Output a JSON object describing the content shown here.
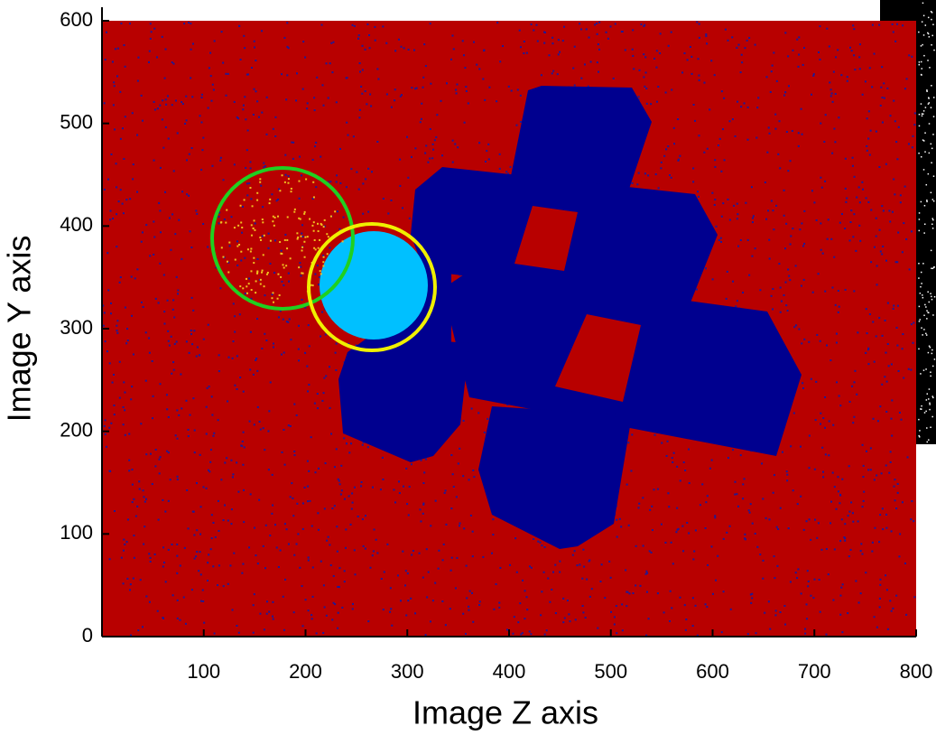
{
  "chart_data": {
    "type": "image",
    "xlabel": "Image Z axis",
    "ylabel": "Image Y axis",
    "xlim": [
      0,
      800
    ],
    "ylim": [
      0,
      600
    ],
    "xticks": [
      100,
      200,
      300,
      400,
      500,
      600,
      700,
      800
    ],
    "yticks": [
      0,
      100,
      200,
      300,
      400,
      500,
      600
    ]
  }
}
